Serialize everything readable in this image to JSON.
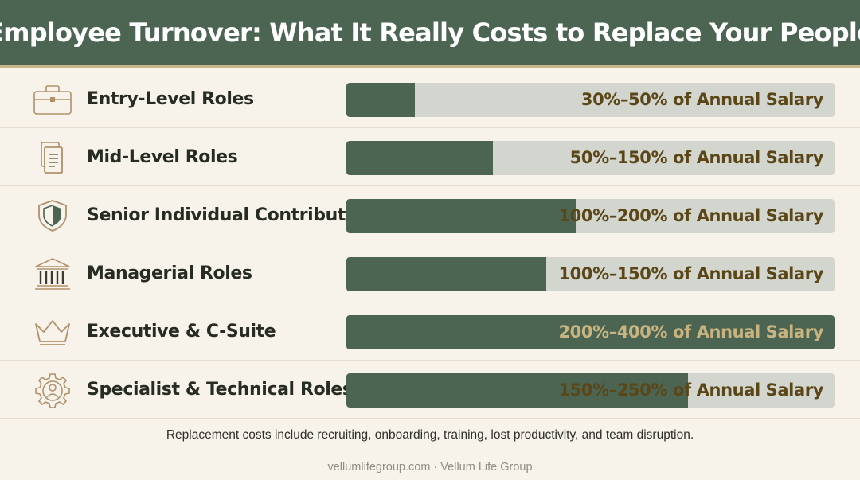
{
  "header": {
    "title": "Employee Turnover: What It Really Costs to Replace Your People"
  },
  "colors": {
    "header_bg": "#4c6552",
    "accent_rule": "#c9b589",
    "bar_fill": "#4c6552",
    "bar_track": "#d3d6cf",
    "label_text": "#5a4617",
    "icon_stroke": "#b0916a"
  },
  "chart_data": {
    "type": "bar",
    "orientation": "horizontal",
    "categories": [
      "Entry-Level Roles",
      "Mid-Level Roles",
      "Senior Individual Contributors",
      "Managerial Roles",
      "Executive & C-Suite",
      "Specialist & Technical Roles"
    ],
    "icons": [
      "briefcase-icon",
      "document-icon",
      "shield-icon",
      "institution-icon",
      "crown-icon",
      "gear-person-icon"
    ],
    "range_labels": [
      "30%–50% of Annual Salary",
      "50%–150% of Annual Salary",
      "100%–200% of Annual Salary",
      "100%–150% of Annual Salary",
      "200%–400% of Annual Salary",
      "150%–250% of Annual Salary"
    ],
    "fill_fraction": [
      0.14,
      0.3,
      0.47,
      0.41,
      1.0,
      0.7
    ]
  },
  "footnote": "Replacement costs include recruiting, onboarding, training, lost productivity, and team disruption.",
  "credit": "vellumlifegroup.com · Vellum Life Group"
}
